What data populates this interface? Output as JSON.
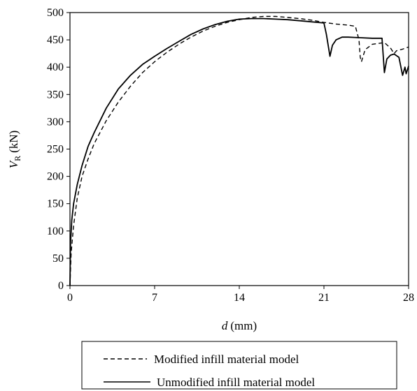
{
  "chart_data": {
    "type": "line",
    "xlabel": {
      "symbol": "d",
      "unit": "(mm)"
    },
    "ylabel": {
      "symbol": "V",
      "subscript": "R",
      "unit": "(kN)"
    },
    "xlim": [
      0,
      28
    ],
    "ylim": [
      0,
      500
    ],
    "xticks": [
      0,
      7,
      14,
      21,
      28
    ],
    "yticks": [
      0,
      50,
      100,
      150,
      200,
      250,
      300,
      350,
      400,
      450,
      500
    ],
    "grid": false,
    "legend_position": "bottom",
    "series": [
      {
        "name": "Modified infill material model",
        "style": "dashed",
        "color": "#000000",
        "x": [
          0,
          0.1,
          0.3,
          0.6,
          1.0,
          1.5,
          2.0,
          3.0,
          4.0,
          5.0,
          6.0,
          7.0,
          8.0,
          9.0,
          10.0,
          11.0,
          12.0,
          13.0,
          14.0,
          15.0,
          16.0,
          17.0,
          18.0,
          19.0,
          20.0,
          21.0,
          22.0,
          23.0,
          23.6,
          23.9,
          24.0,
          24.1,
          24.4,
          25.0,
          26.0,
          26.5,
          26.8,
          27.0,
          27.5,
          28.0
        ],
        "y": [
          0,
          60,
          110,
          160,
          200,
          232,
          260,
          302,
          336,
          365,
          390,
          410,
          427,
          442,
          455,
          466,
          475,
          482,
          487,
          491,
          493,
          493,
          491,
          489,
          486,
          482,
          479,
          477,
          475,
          450,
          418,
          410,
          432,
          442,
          445,
          435,
          425,
          430,
          433,
          437
        ]
      },
      {
        "name": "Unmodified infill material model",
        "style": "solid",
        "color": "#000000",
        "x": [
          0,
          0.05,
          0.15,
          0.3,
          0.6,
          1.0,
          1.5,
          2.0,
          3.0,
          4.0,
          5.0,
          6.0,
          7.0,
          8.0,
          9.0,
          10.0,
          11.0,
          12.0,
          13.0,
          14.0,
          15.0,
          16.0,
          17.0,
          18.0,
          19.0,
          20.0,
          21.0,
          21.2,
          21.5,
          21.7,
          22.0,
          22.5,
          23.0,
          24.0,
          25.0,
          25.8,
          26.0,
          26.2,
          26.5,
          26.8,
          27.2,
          27.5,
          27.7,
          27.8,
          28.0
        ],
        "y": [
          0,
          80,
          120,
          150,
          185,
          220,
          255,
          280,
          325,
          360,
          385,
          405,
          420,
          434,
          447,
          460,
          470,
          478,
          484,
          488,
          489,
          489,
          488,
          487,
          485,
          483,
          481,
          460,
          420,
          440,
          450,
          455,
          455,
          454,
          453,
          453,
          390,
          415,
          422,
          424,
          418,
          385,
          400,
          388,
          402
        ]
      }
    ]
  }
}
